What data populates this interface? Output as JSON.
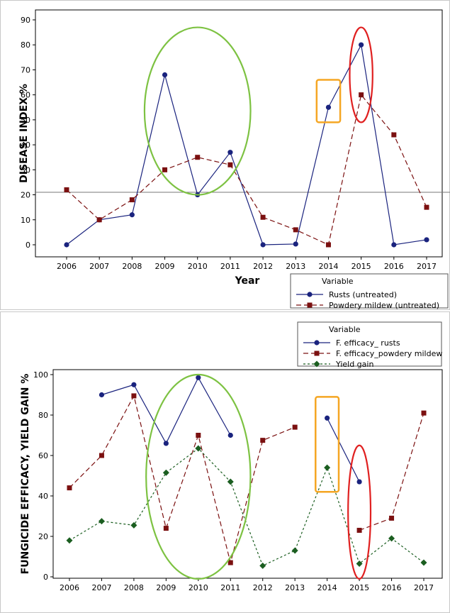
{
  "chart_data": [
    {
      "type": "line",
      "ylabel": "DISEASE INDEX %",
      "xlabel": "Year",
      "x": [
        "2006",
        "2007",
        "2008",
        "2009",
        "2010",
        "2011",
        "2012",
        "2013",
        "2014",
        "2015",
        "2016",
        "2017"
      ],
      "ylim": [
        0,
        90
      ],
      "yticks": [
        0,
        10,
        20,
        30,
        40,
        50,
        60,
        70,
        80,
        90
      ],
      "reference_line": 21,
      "legend_title": "Variable",
      "legend_position": "bottom-right",
      "series": [
        {
          "name": "Rusts (untreated)",
          "color": "#1a237e",
          "marker": "circle",
          "dashed": false,
          "values": [
            0,
            10,
            12,
            68,
            20,
            37,
            0,
            0.3,
            55,
            80,
            0,
            2
          ]
        },
        {
          "name": "Powdery mildew (untreated)",
          "color": "#7b1010",
          "marker": "square",
          "dashed": true,
          "values": [
            22,
            10,
            18,
            30,
            35,
            32,
            11,
            6,
            0,
            60,
            44,
            15
          ]
        }
      ],
      "annotations": [
        {
          "shape": "ellipse",
          "color": "#7dc242",
          "years": [
            "2009",
            "2011"
          ],
          "yrange": [
            20,
            87
          ]
        },
        {
          "shape": "rect",
          "color": "#f5a623",
          "years": [
            "2014"
          ],
          "yrange": [
            49,
            66
          ]
        },
        {
          "shape": "ellipse",
          "color": "#e02020",
          "years": [
            "2015"
          ],
          "yrange": [
            49,
            87
          ]
        }
      ]
    },
    {
      "type": "line",
      "ylabel": "FUNGICIDE EFFICACY, YIELD GAIN %",
      "xlabel": "",
      "x": [
        "2006",
        "2007",
        "2008",
        "2009",
        "2010",
        "2011",
        "2012",
        "2013",
        "2014",
        "2015",
        "2016",
        "2017"
      ],
      "ylim": [
        0,
        100
      ],
      "yticks": [
        0,
        20,
        40,
        60,
        80,
        100
      ],
      "legend_title": "Variable",
      "legend_position": "top-right",
      "series": [
        {
          "name": "F. efficacy_ rusts",
          "color": "#1a237e",
          "marker": "circle",
          "dashed": false,
          "values": [
            null,
            90,
            95,
            66,
            98.5,
            70,
            null,
            null,
            78.5,
            47,
            null,
            null
          ]
        },
        {
          "name": "F. efficacy_powdery mildew",
          "color": "#7b1010",
          "marker": "square",
          "dashed": true,
          "values": [
            44,
            60,
            89.5,
            24,
            70,
            7,
            67.5,
            74,
            null,
            23,
            29,
            81
          ]
        },
        {
          "name": "Yield gain",
          "color": "#1b5e20",
          "marker": "diamond",
          "dashed": true,
          "dash": "short",
          "values": [
            18,
            27.5,
            25.5,
            51.5,
            63.5,
            47,
            5.5,
            13,
            54,
            6.5,
            19,
            7
          ]
        }
      ],
      "annotations": [
        {
          "shape": "ellipse",
          "color": "#7dc242",
          "years": [
            "2009",
            "2011"
          ],
          "yrange": [
            -1,
            100
          ]
        },
        {
          "shape": "rect",
          "color": "#f5a623",
          "years": [
            "2014"
          ],
          "yrange": [
            42,
            89
          ]
        },
        {
          "shape": "ellipse",
          "color": "#e02020",
          "years": [
            "2015"
          ],
          "yrange": [
            -1,
            65
          ]
        }
      ]
    }
  ]
}
